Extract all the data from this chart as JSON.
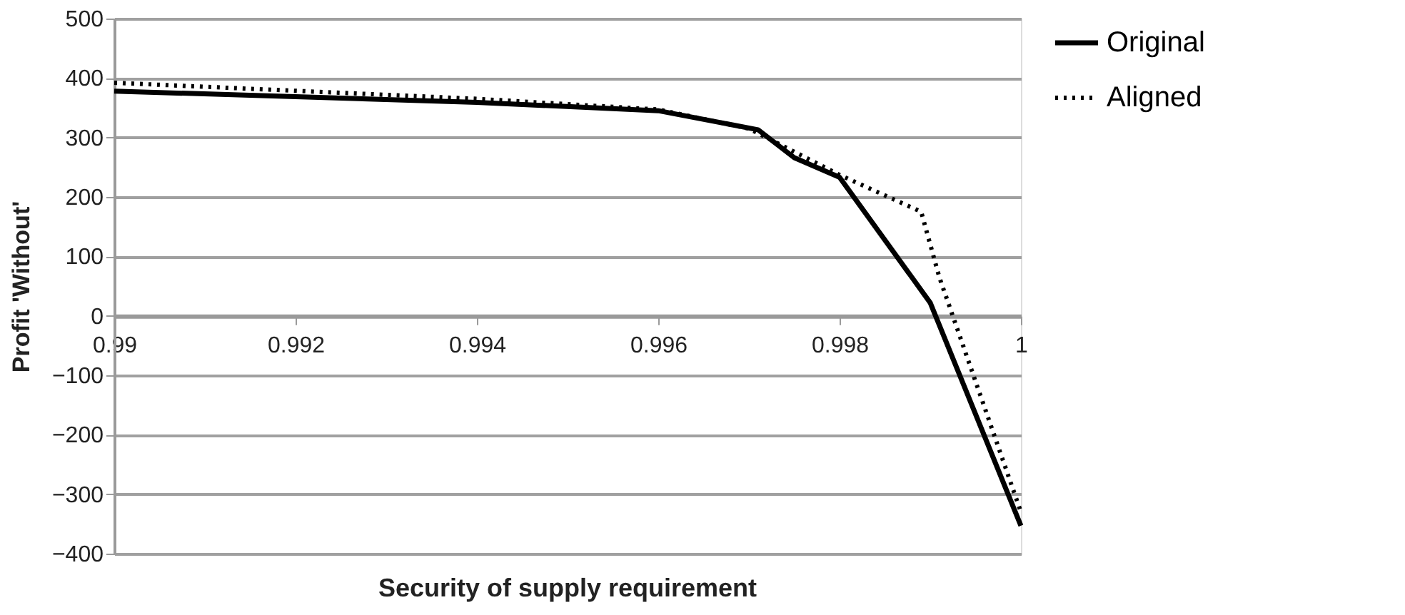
{
  "chart_data": {
    "type": "line",
    "xlabel": "Security of supply requirement",
    "ylabel": "Profit 'Without'",
    "xlim": [
      0.99,
      1
    ],
    "xticks": [
      0.99,
      0.992,
      0.994,
      0.996,
      0.998,
      1
    ],
    "ylim": [
      -400,
      500
    ],
    "yticks": [
      -400,
      -300,
      -200,
      -100,
      0,
      100,
      200,
      300,
      400,
      500
    ],
    "grid": "y",
    "legend": "right",
    "marker": "none",
    "series": [
      {
        "name": "Original",
        "color": "#000000",
        "line_style": "solid",
        "x": [
          0.99,
          0.994,
          0.996,
          0.9971,
          0.9975,
          0.998,
          0.999,
          1
        ],
        "values": [
          378,
          359,
          345,
          313,
          266,
          233,
          22,
          -353
        ]
      },
      {
        "name": "Aligned",
        "color": "#000000",
        "line_style": "dotted",
        "x": [
          0.99,
          0.994,
          0.996,
          0.997,
          0.998,
          0.9989,
          0.9991,
          1
        ],
        "values": [
          392,
          365,
          347,
          315,
          237,
          175,
          65,
          -330
        ]
      }
    ]
  }
}
